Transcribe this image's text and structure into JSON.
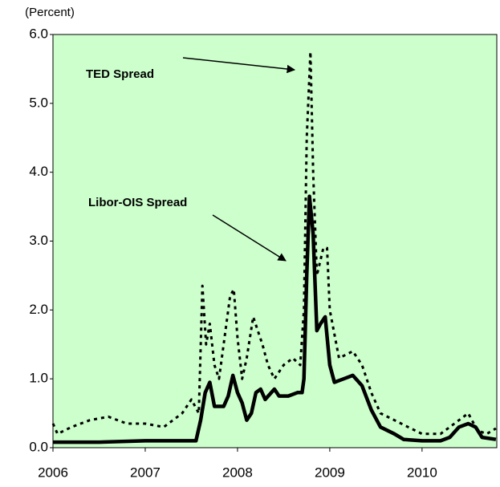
{
  "chart_data": {
    "type": "line",
    "y_label": "(Percent)",
    "xlim": [
      2006,
      2010.81
    ],
    "xticks": [
      2006,
      2007,
      2008,
      2009,
      2010
    ],
    "ylim": [
      0,
      6
    ],
    "yticks": [
      {
        "value": 0,
        "label": "0.0"
      },
      {
        "value": 1,
        "label": "1.0"
      },
      {
        "value": 2,
        "label": "2.0"
      },
      {
        "value": 3,
        "label": "3.0"
      },
      {
        "value": 4,
        "label": "4.0"
      },
      {
        "value": 5,
        "label": "5.0"
      },
      {
        "value": 6,
        "label": "6.0"
      }
    ],
    "background": "#ccffcc",
    "series": [
      {
        "name": "TED Spread",
        "color": "#000000",
        "style": "dashed",
        "x": [
          2006.0,
          2006.05,
          2006.2,
          2006.4,
          2006.6,
          2006.8,
          2007.0,
          2007.2,
          2007.4,
          2007.5,
          2007.58,
          2007.62,
          2007.66,
          2007.7,
          2007.75,
          2007.8,
          2007.88,
          2007.92,
          2007.96,
          2008.0,
          2008.05,
          2008.1,
          2008.17,
          2008.22,
          2008.27,
          2008.33,
          2008.4,
          2008.5,
          2008.6,
          2008.68,
          2008.72,
          2008.75,
          2008.79,
          2008.82,
          2008.86,
          2008.93,
          2008.97,
          2009.0,
          2009.1,
          2009.25,
          2009.35,
          2009.45,
          2009.55,
          2009.7,
          2009.85,
          2010.0,
          2010.2,
          2010.4,
          2010.5,
          2010.6,
          2010.7,
          2010.8
        ],
        "values": [
          0.35,
          0.2,
          0.3,
          0.4,
          0.45,
          0.35,
          0.35,
          0.3,
          0.5,
          0.7,
          0.5,
          2.35,
          1.5,
          1.8,
          1.2,
          1.0,
          1.8,
          2.2,
          2.3,
          1.6,
          1.0,
          1.3,
          1.9,
          1.7,
          1.5,
          1.2,
          1.0,
          1.2,
          1.3,
          1.2,
          2.0,
          4.5,
          5.75,
          4.0,
          2.5,
          2.9,
          2.9,
          2.0,
          1.3,
          1.4,
          1.2,
          0.8,
          0.5,
          0.4,
          0.3,
          0.2,
          0.2,
          0.4,
          0.5,
          0.25,
          0.2,
          0.28
        ]
      },
      {
        "name": "Libor-OIS Spread",
        "color": "#000000",
        "style": "solid",
        "x": [
          2006.0,
          2006.5,
          2007.0,
          2007.55,
          2007.6,
          2007.65,
          2007.7,
          2007.75,
          2007.85,
          2007.9,
          2007.95,
          2008.0,
          2008.05,
          2008.1,
          2008.15,
          2008.2,
          2008.25,
          2008.3,
          2008.4,
          2008.45,
          2008.55,
          2008.65,
          2008.7,
          2008.72,
          2008.75,
          2008.78,
          2008.82,
          2008.86,
          2008.9,
          2008.95,
          2009.0,
          2009.05,
          2009.15,
          2009.25,
          2009.35,
          2009.45,
          2009.55,
          2009.7,
          2009.8,
          2010.0,
          2010.2,
          2010.3,
          2010.4,
          2010.5,
          2010.58,
          2010.65,
          2010.8
        ],
        "values": [
          0.08,
          0.08,
          0.1,
          0.1,
          0.4,
          0.8,
          0.95,
          0.6,
          0.6,
          0.75,
          1.05,
          0.8,
          0.65,
          0.4,
          0.5,
          0.8,
          0.85,
          0.7,
          0.85,
          0.75,
          0.75,
          0.8,
          0.8,
          1.0,
          2.5,
          3.65,
          3.1,
          1.7,
          1.8,
          1.9,
          1.2,
          0.95,
          1.0,
          1.05,
          0.9,
          0.55,
          0.3,
          0.2,
          0.12,
          0.1,
          0.1,
          0.15,
          0.3,
          0.35,
          0.3,
          0.15,
          0.12
        ]
      }
    ]
  }
}
